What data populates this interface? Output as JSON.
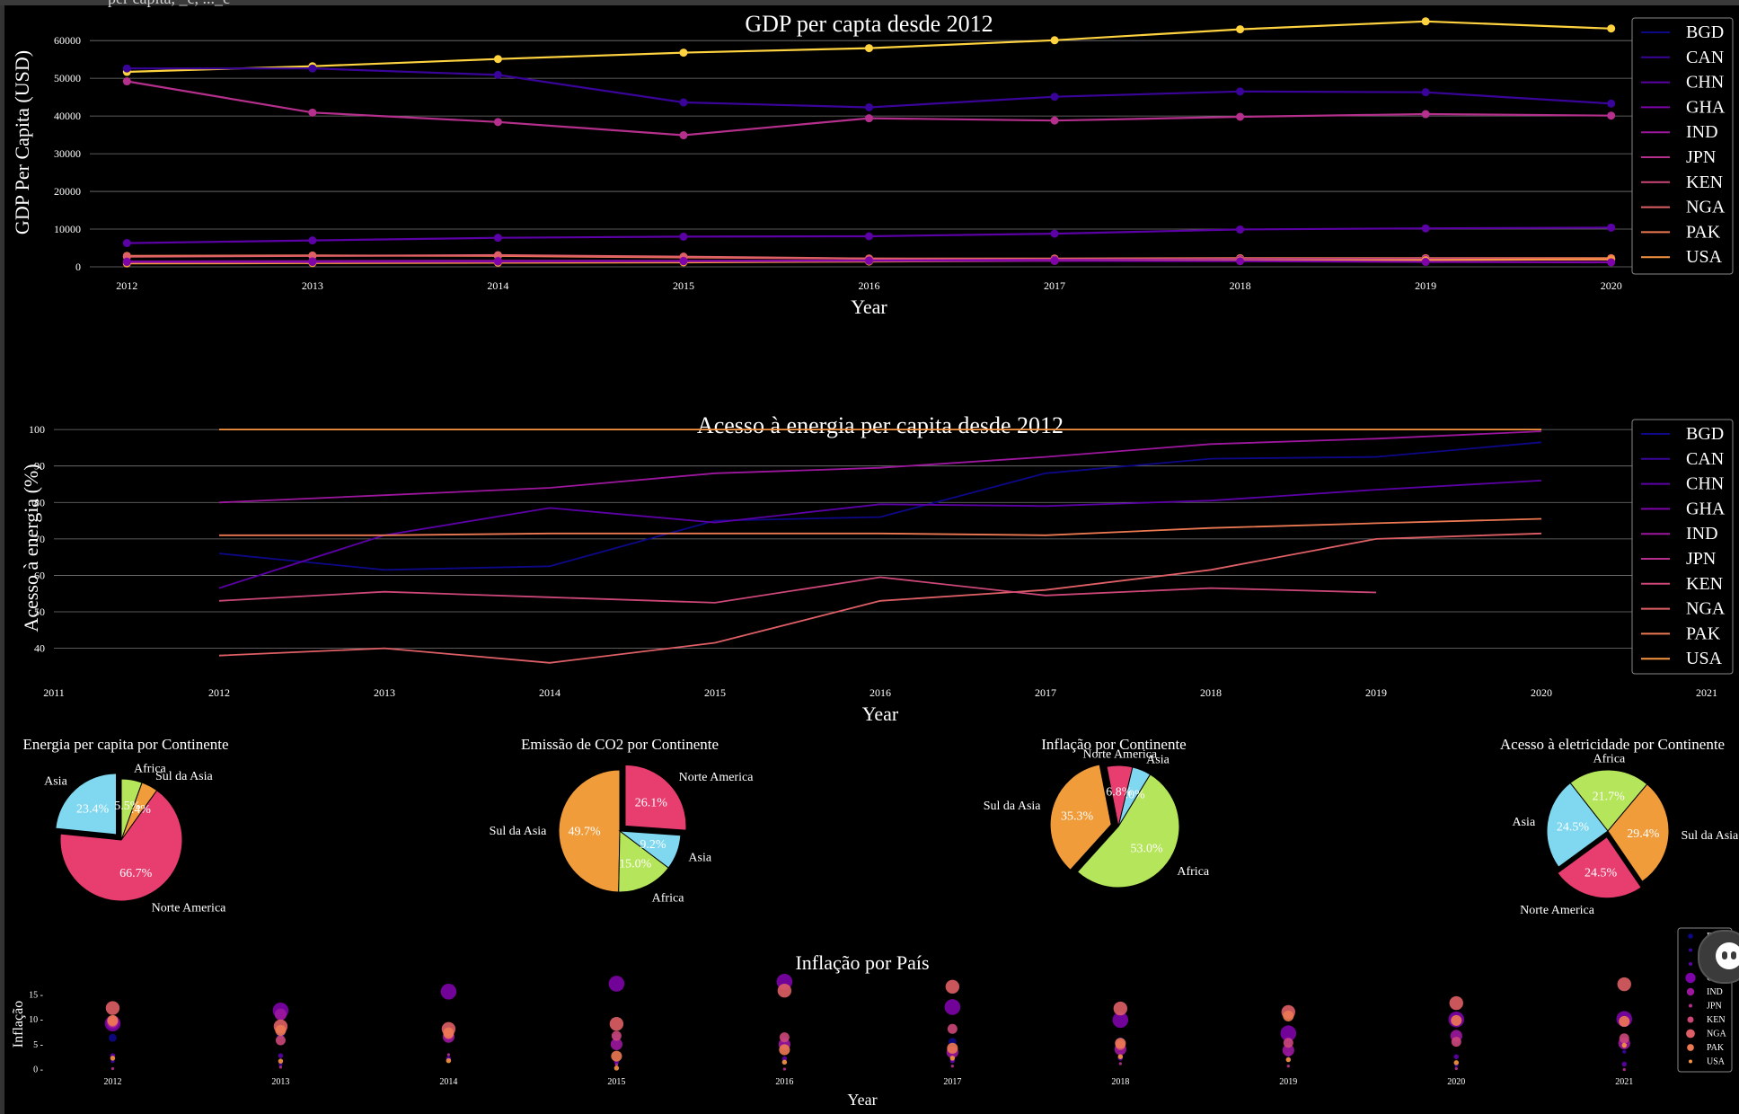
{
  "header_text": "per capita, _c, ..._c",
  "colors": {
    "BGD": "#0d0887",
    "CAN": "#3a049a",
    "CHN": "#5c01a6",
    "GHA": "#7e03a8",
    "IND": "#9c179e",
    "JPN": "#b52f8c",
    "KEN": "#cc4778",
    "NGA": "#de5f65",
    "PAK": "#ed7953",
    "USA": "#f89540",
    "pie_pink": "#e83e6f",
    "pie_blue": "#7fd8f0",
    "pie_green": "#b5e55a",
    "pie_orange": "#f09c3b",
    "gdp_yellow": "#ffd23f",
    "grid": "#777777"
  },
  "chart_data": [
    {
      "type": "line",
      "title": "GDP per capta desde 2012",
      "xlabel": "Year",
      "ylabel": "GDP Per Capita (USD)",
      "x": [
        2012,
        2013,
        2014,
        2015,
        2016,
        2017,
        2018,
        2019,
        2020
      ],
      "ylim": [
        0,
        66000
      ],
      "yticks": [
        0,
        10000,
        20000,
        30000,
        40000,
        50000,
        60000
      ],
      "legend": [
        "BGD",
        "CAN",
        "CHN",
        "GHA",
        "IND",
        "JPN",
        "KEN",
        "NGA",
        "PAK",
        "USA"
      ],
      "legend_placement": "right",
      "grid": true,
      "series": [
        {
          "name": "USA",
          "colorKey": "gdp_yellow",
          "values": [
            51700,
            53200,
            55100,
            56800,
            58000,
            60100,
            63000,
            65100,
            63200
          ]
        },
        {
          "name": "CAN",
          "colorKey": "CAN",
          "values": [
            52600,
            52600,
            50900,
            43600,
            42300,
            45100,
            46500,
            46300,
            43300
          ]
        },
        {
          "name": "JPN",
          "colorKey": "JPN",
          "values": [
            49200,
            40900,
            38400,
            34900,
            39400,
            38800,
            39800,
            40500,
            40100
          ]
        },
        {
          "name": "CHN",
          "colorKey": "CHN",
          "values": [
            6300,
            7000,
            7700,
            8000,
            8100,
            8800,
            9900,
            10200,
            10400
          ]
        },
        {
          "name": "GHA",
          "colorKey": "PAK",
          "values": [
            2900,
            3000,
            2900,
            2500,
            2200,
            2200,
            2300,
            2300,
            2300
          ]
        },
        {
          "name": "NGA",
          "colorKey": "NGA",
          "values": [
            2700,
            2900,
            3100,
            2700,
            2200,
            1900,
            2000,
            2200,
            2100
          ]
        },
        {
          "name": "IND",
          "colorKey": "IND",
          "values": [
            1400,
            1500,
            1600,
            1600,
            1700,
            1900,
            2000,
            2000,
            1900
          ]
        },
        {
          "name": "BGD",
          "colorKey": "USA",
          "values": [
            900,
            1000,
            1100,
            1200,
            1400,
            1600,
            1700,
            1800,
            2000
          ]
        },
        {
          "name": "PAK",
          "colorKey": "GHA",
          "values": [
            1300,
            1300,
            1400,
            1500,
            1600,
            1600,
            1500,
            1300,
            1200
          ]
        }
      ]
    },
    {
      "type": "line",
      "title": "Acesso à energia per capita desde 2012",
      "xlabel": "Year",
      "ylabel": "Acesso à energia (%)",
      "xlim": [
        2011,
        2021
      ],
      "xticks": [
        2011,
        2012,
        2013,
        2014,
        2015,
        2016,
        2017,
        2018,
        2019,
        2020,
        2021
      ],
      "ylim": [
        33,
        102
      ],
      "yticks": [
        40,
        50,
        60,
        70,
        80,
        90,
        100
      ],
      "legend": [
        "BGD",
        "CAN",
        "CHN",
        "GHA",
        "IND",
        "JPN",
        "KEN",
        "NGA",
        "PAK",
        "USA"
      ],
      "legend_placement": "right",
      "grid": true,
      "series": [
        {
          "name": "USA",
          "colorKey": "USA",
          "x": [
            2012,
            2013,
            2014,
            2015,
            2016,
            2017,
            2018,
            2019,
            2020
          ],
          "values": [
            100,
            100,
            100,
            100,
            100,
            100,
            100,
            100,
            100
          ]
        },
        {
          "name": "JPN",
          "colorKey": "IND",
          "x": [
            2012,
            2013,
            2014,
            2015,
            2016,
            2017,
            2018,
            2019,
            2020
          ],
          "values": [
            80,
            82,
            84,
            88,
            89.5,
            92.5,
            96,
            97.5,
            99.5
          ]
        },
        {
          "name": "BGD",
          "colorKey": "BGD",
          "x": [
            2012,
            2013,
            2014,
            2015,
            2016,
            2017,
            2018,
            2019,
            2020
          ],
          "values": [
            66,
            61.5,
            62.5,
            75,
            76,
            88,
            92,
            92.5,
            96.5
          ]
        },
        {
          "name": "IND",
          "colorKey": "CHN",
          "x": [
            2012,
            2013,
            2014,
            2015,
            2016,
            2017,
            2018,
            2019,
            2020
          ],
          "values": [
            56.5,
            71,
            78.5,
            74.5,
            79.5,
            79,
            80.5,
            83.5,
            86
          ]
        },
        {
          "name": "PAK",
          "colorKey": "PAK",
          "x": [
            2012,
            2013,
            2014,
            2015,
            2016,
            2017,
            2018,
            2019,
            2020
          ],
          "values": [
            71,
            71,
            71.5,
            71.5,
            71.5,
            71,
            73,
            74.3,
            75.5
          ]
        },
        {
          "name": "NGA",
          "colorKey": "NGA",
          "x": [
            2012,
            2013,
            2014,
            2015,
            2016,
            2017,
            2018,
            2019,
            2020
          ],
          "values": [
            38,
            40,
            36,
            41.5,
            53,
            56,
            61.5,
            70,
            71.5
          ]
        },
        {
          "name": "GHA",
          "colorKey": "KEN",
          "x": [
            2012,
            2013,
            2014,
            2015,
            2016,
            2017,
            2018,
            2019
          ],
          "values": [
            53,
            55.5,
            54,
            52.5,
            59.5,
            54.5,
            56.5,
            55.3
          ]
        }
      ]
    },
    {
      "type": "pie",
      "title": "Energia per capita por Continente",
      "labels": [
        "Asia",
        "Norte America",
        "Sul da Asia",
        "Africa"
      ],
      "values": [
        23.4,
        66.7,
        4.4,
        5.5
      ],
      "pct_labels": [
        "23.4%",
        "66.7%",
        "4.4%",
        "5.5%"
      ],
      "colorKeys": [
        "pie_blue",
        "pie_pink",
        "pie_orange",
        "pie_green"
      ],
      "start_angle": 90,
      "explode": [
        0.12,
        0,
        0,
        0
      ]
    },
    {
      "type": "pie",
      "title": "Emissão de CO2 por Continente",
      "labels": [
        "Sul da Asia",
        "Africa",
        "Asia",
        "Norte America"
      ],
      "values": [
        49.7,
        15.0,
        9.2,
        26.1
      ],
      "pct_labels": [
        "49.7%",
        "15.0%",
        "9.2%",
        "26.1%"
      ],
      "colorKeys": [
        "pie_orange",
        "pie_green",
        "pie_blue",
        "pie_pink"
      ],
      "start_angle": 90,
      "explode": [
        0,
        0,
        0,
        0.12
      ]
    },
    {
      "type": "pie",
      "title": "Inflação por Continente",
      "labels": [
        "Sul da Asia",
        "Africa",
        "Asia",
        "Norte America"
      ],
      "values": [
        35.3,
        53.0,
        5.0,
        6.8
      ],
      "pct_labels": [
        "35.3%",
        "53.0%",
        "5.0%",
        "6.8%"
      ],
      "colorKeys": [
        "pie_orange",
        "pie_green",
        "pie_blue",
        "pie_pink"
      ],
      "start_angle": 101,
      "explode": [
        0.12,
        0,
        0,
        0
      ]
    },
    {
      "type": "pie",
      "title": "Acesso à eletricidade por Continente",
      "labels": [
        "Africa",
        "Asia",
        "Norte America",
        "Sul da Asia"
      ],
      "values": [
        21.7,
        24.5,
        24.5,
        29.4
      ],
      "pct_labels": [
        "21.7%",
        "24.5%",
        "24.5%",
        "29.4%"
      ],
      "colorKeys": [
        "pie_green",
        "pie_blue",
        "pie_pink",
        "pie_orange"
      ],
      "start_angle": 50,
      "explode": [
        0,
        0,
        0.1,
        0
      ]
    },
    {
      "type": "scatter",
      "title": "Inflação por País",
      "xlabel": "Year",
      "ylabel": "Inflação",
      "x": [
        2012,
        2013,
        2014,
        2015,
        2016,
        2017,
        2018,
        2019,
        2020,
        2021
      ],
      "ylim": [
        -1,
        18
      ],
      "yticks": [
        0,
        5,
        10,
        15
      ],
      "legend": [
        "BGD",
        "CAN",
        "CHN",
        "GHA",
        "IND",
        "JPN",
        "KEN",
        "NGA",
        "PAK",
        "USA"
      ],
      "legend_placement": "right",
      "series": [
        {
          "name": "BGD",
          "colorKey": "BGD",
          "values": [
            6.2,
            6.8,
            7.0,
            6.2,
            5.7,
            5.4,
            5.5,
            5.6,
            5.7,
            5.6
          ]
        },
        {
          "name": "CAN",
          "colorKey": "CAN",
          "values": [
            1.5,
            0.9,
            1.9,
            1.1,
            1.4,
            1.6,
            2.3,
            1.9,
            0.7,
            3.4
          ]
        },
        {
          "name": "CHN",
          "colorKey": "CHN",
          "values": [
            2.6,
            2.6,
            2.0,
            1.4,
            2.0,
            1.6,
            2.1,
            2.9,
            2.4,
            0.9
          ]
        },
        {
          "name": "GHA",
          "colorKey": "GHA",
          "values": [
            9.1,
            11.7,
            15.5,
            17.1,
            17.5,
            12.4,
            9.8,
            7.1,
            9.9,
            10.0
          ]
        },
        {
          "name": "IND",
          "colorKey": "IND",
          "values": [
            9.3,
            10.9,
            6.4,
            4.9,
            4.9,
            3.3,
            3.9,
            3.7,
            6.6,
            5.1
          ]
        },
        {
          "name": "JPN",
          "colorKey": "JPN",
          "values": [
            0.0,
            0.3,
            2.8,
            0.8,
            -0.1,
            0.5,
            1.0,
            0.5,
            0.0,
            -0.2
          ]
        },
        {
          "name": "KEN",
          "colorKey": "KEN",
          "values": [
            9.4,
            5.7,
            6.9,
            6.6,
            6.3,
            8.0,
            4.7,
            5.2,
            5.4,
            6.1
          ]
        },
        {
          "name": "NGA",
          "colorKey": "NGA",
          "values": [
            12.2,
            8.5,
            8.0,
            9.0,
            15.7,
            16.5,
            12.1,
            11.4,
            13.2,
            17.0
          ]
        },
        {
          "name": "PAK",
          "colorKey": "PAK",
          "values": [
            9.7,
            7.7,
            7.2,
            2.5,
            3.8,
            4.1,
            5.1,
            10.6,
            9.7,
            9.5
          ]
        },
        {
          "name": "USA",
          "colorKey": "USA",
          "values": [
            2.1,
            1.5,
            1.6,
            0.1,
            1.3,
            2.1,
            2.4,
            1.8,
            1.2,
            4.7
          ]
        }
      ],
      "sizes": {
        "BGD": 8,
        "CAN": 4,
        "CHN": 5,
        "GHA": 16,
        "IND": 12,
        "JPN": 3,
        "KEN": 10,
        "NGA": 14,
        "PAK": 11,
        "USA": 5
      }
    }
  ]
}
